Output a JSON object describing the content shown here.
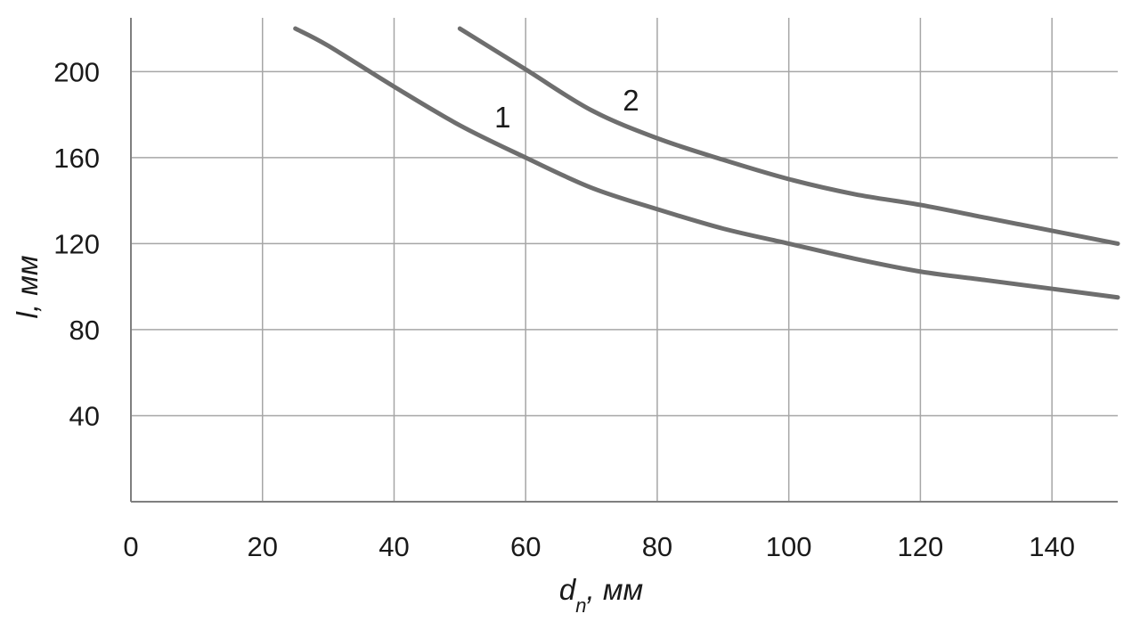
{
  "chart_data": {
    "type": "line",
    "xlim": [
      0,
      150
    ],
    "ylim": [
      0,
      225
    ],
    "xticks": [
      0,
      20,
      40,
      60,
      80,
      100,
      120,
      140
    ],
    "yticks": [
      40,
      80,
      120,
      160,
      200
    ],
    "x_tick_labels": [
      "0",
      "20",
      "40",
      "60",
      "80",
      "100",
      "120",
      "140"
    ],
    "y_tick_labels": [
      "40",
      "80",
      "120",
      "160",
      "200"
    ],
    "xlabel": {
      "main": "d",
      "sub": "n",
      "rest": ", мм"
    },
    "ylabel": "l, мм",
    "grid": true,
    "line_color": "#6e6e6e",
    "series": [
      {
        "name": "1",
        "x": [
          25,
          30,
          40,
          50,
          60,
          70,
          80,
          90,
          100,
          110,
          120,
          130,
          140,
          150
        ],
        "values": [
          220,
          212,
          193,
          175,
          160,
          146,
          136,
          127,
          120,
          113,
          107,
          103,
          99,
          95
        ]
      },
      {
        "name": "2",
        "x": [
          50,
          60,
          70,
          80,
          90,
          100,
          110,
          120,
          130,
          140,
          150
        ],
        "values": [
          220,
          201,
          182,
          169,
          159,
          150,
          143,
          138,
          132,
          126,
          120
        ]
      }
    ],
    "series_label_anchor": [
      {
        "x": 56.5,
        "y": 174
      },
      {
        "x": 76,
        "y": 182
      }
    ]
  }
}
